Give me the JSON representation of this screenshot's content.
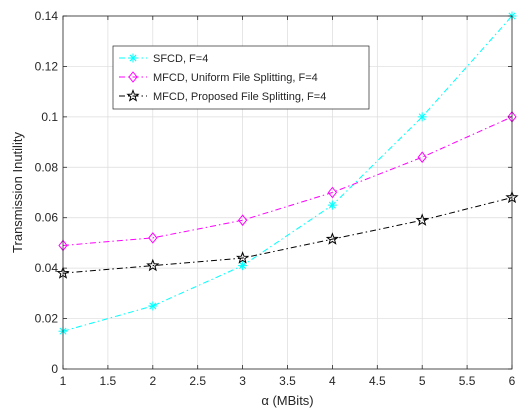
{
  "chart_data": {
    "type": "line",
    "title": "",
    "xlabel": "α (MBits)",
    "ylabel": "Transmission Inutility",
    "xlim": [
      1,
      6
    ],
    "ylim": [
      0,
      0.14
    ],
    "xticks": [
      "1",
      "1.5",
      "2",
      "2.5",
      "3",
      "3.5",
      "4",
      "4.5",
      "5",
      "5.5",
      "6"
    ],
    "yticks": [
      "0",
      "0.02",
      "0.04",
      "0.06",
      "0.08",
      "0.1",
      "0.12",
      "0.14"
    ],
    "grid": true,
    "legend_position": "top-left",
    "x": [
      1,
      2,
      3,
      4,
      5,
      6
    ],
    "series": [
      {
        "name": "SFCD, F=4",
        "values": [
          0.015,
          0.025,
          0.041,
          0.065,
          0.1,
          0.14
        ],
        "color": "#00ffff",
        "marker": "asterisk"
      },
      {
        "name": "MFCD, Uniform File Splitting, F=4",
        "values": [
          0.049,
          0.052,
          0.059,
          0.07,
          0.084,
          0.1
        ],
        "color": "#ff00ff",
        "marker": "diamond"
      },
      {
        "name": "MFCD, Proposed File Splitting, F=4",
        "values": [
          0.038,
          0.041,
          0.044,
          0.0515,
          0.059,
          0.068
        ],
        "color": "#000000",
        "marker": "pentagram"
      }
    ]
  }
}
